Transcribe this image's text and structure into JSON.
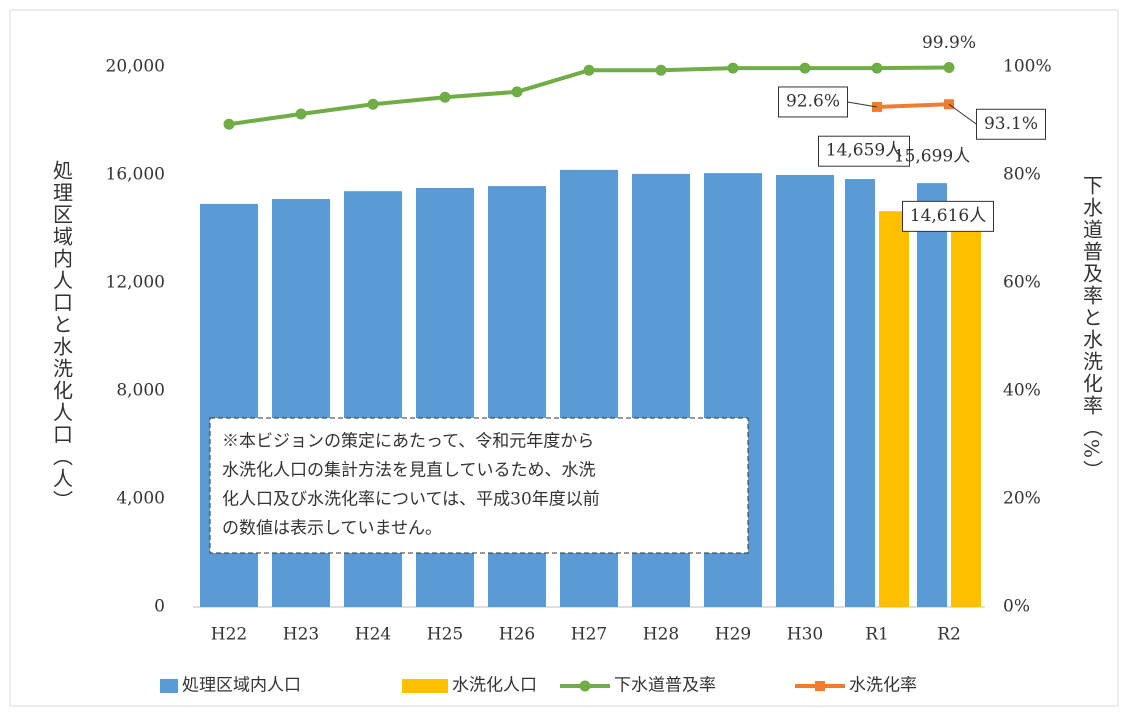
{
  "chart_data": {
    "type": "bar",
    "categories": [
      "H22",
      "H23",
      "H24",
      "H25",
      "H26",
      "H27",
      "H28",
      "H29",
      "H30",
      "R1",
      "R2"
    ],
    "series": [
      {
        "name": "処理区域内人口",
        "type": "bar",
        "color": "#5b9bd5",
        "values": [
          14930,
          15110,
          15400,
          15520,
          15590,
          16190,
          16040,
          16070,
          16000,
          15850,
          15699
        ],
        "value_labels": [
          null,
          null,
          null,
          null,
          null,
          null,
          null,
          null,
          null,
          null,
          "15,699人"
        ]
      },
      {
        "name": "水洗化人口",
        "type": "bar",
        "color": "#ffc000",
        "values": [
          null,
          null,
          null,
          null,
          null,
          null,
          null,
          null,
          null,
          14659,
          14616
        ],
        "value_labels": [
          null,
          null,
          null,
          null,
          null,
          null,
          null,
          null,
          null,
          "14,659人",
          "14,616人"
        ]
      },
      {
        "name": "下水道普及率",
        "type": "line",
        "axis": "y2",
        "color": "#70ad47",
        "marker": "circle",
        "values": [
          89.4,
          91.3,
          93.1,
          94.4,
          95.4,
          99.4,
          99.4,
          99.8,
          99.8,
          99.8,
          99.9
        ],
        "value_labels": [
          null,
          null,
          null,
          null,
          null,
          null,
          null,
          null,
          null,
          null,
          "99.9%"
        ]
      },
      {
        "name": "水洗化率",
        "type": "line",
        "axis": "y2",
        "color": "#ed7d31",
        "marker": "square",
        "values": [
          null,
          null,
          null,
          null,
          null,
          null,
          null,
          null,
          null,
          92.6,
          93.1
        ],
        "value_labels": [
          null,
          null,
          null,
          null,
          null,
          null,
          null,
          null,
          null,
          "92.6%",
          "93.1%"
        ]
      }
    ],
    "ylabel": "処理区域内人口と水洗化人口（人）",
    "y2label": "下水道普及率と水洗化率（%）",
    "ylim": [
      0,
      20000
    ],
    "yticks": [
      0,
      {
        "value": 4000,
        "label": "4,000"
      },
      {
        "value": 8000,
        "label": "8,000"
      },
      {
        "value": 12000,
        "label": "12,000"
      },
      {
        "value": 16000,
        "label": "16,000"
      },
      {
        "value": 20000,
        "label": "20,000"
      }
    ],
    "y2lim": [
      0,
      100
    ],
    "y2ticks": [
      {
        "value": 0,
        "label": "0%"
      },
      {
        "value": 20,
        "label": "20%"
      },
      {
        "value": 40,
        "label": "40%"
      },
      {
        "value": 60,
        "label": "60%"
      },
      {
        "value": 80,
        "label": "80%"
      },
      {
        "value": 100,
        "label": "100%"
      }
    ],
    "annotation": [
      "※本ビジョンの策定にあたって、令和元年度から",
      "水洗化人口の集計方法を見直しているため、水洗",
      "化人口及び水洗化率については、平成30年度以前",
      "の数値は表示していません。"
    ],
    "legend": "bottom",
    "grid": false
  }
}
